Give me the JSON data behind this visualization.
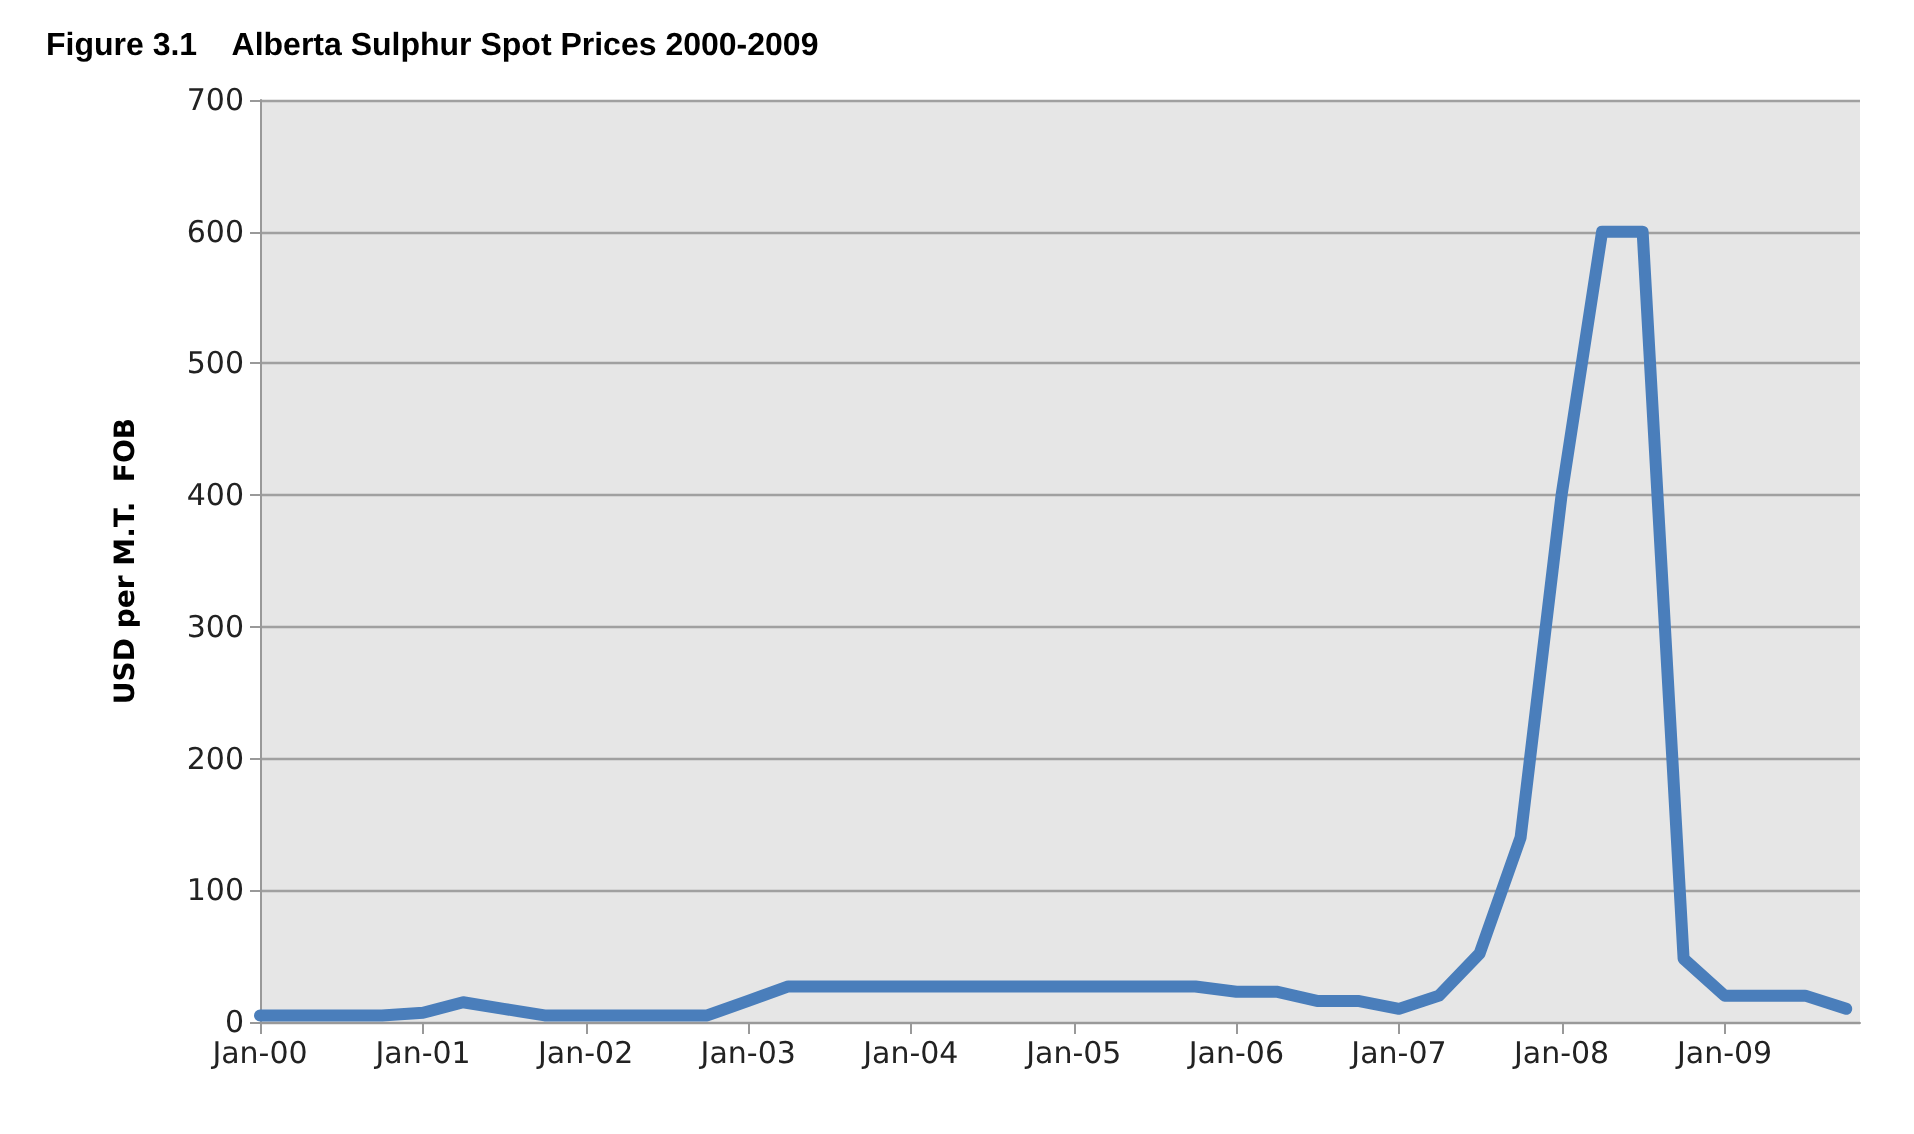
{
  "chart_data": {
    "type": "line",
    "title": "Figure 3.1    Alberta Sulphur Spot Prices 2000-2009",
    "ylabel": "USD per M.T.  FOB",
    "x": [
      "2000-01",
      "2000-04",
      "2000-07",
      "2000-10",
      "2001-01",
      "2001-04",
      "2001-07",
      "2001-10",
      "2002-01",
      "2002-04",
      "2002-07",
      "2002-10",
      "2003-01",
      "2003-04",
      "2003-07",
      "2003-10",
      "2004-01",
      "2004-04",
      "2004-07",
      "2004-10",
      "2005-01",
      "2005-04",
      "2005-07",
      "2005-10",
      "2006-01",
      "2006-04",
      "2006-07",
      "2006-10",
      "2007-01",
      "2007-04",
      "2007-07",
      "2007-10",
      "2008-01",
      "2008-04",
      "2008-07",
      "2008-10",
      "2009-01",
      "2009-04",
      "2009-07",
      "2009-10"
    ],
    "series": [
      {
        "color": "#4a7ebb",
        "values": [
          5,
          5,
          5,
          5,
          7,
          15,
          10,
          5,
          5,
          5,
          5,
          5,
          16,
          27,
          27,
          27,
          27,
          27,
          27,
          27,
          27,
          27,
          27,
          27,
          23,
          23,
          16,
          16,
          10,
          20,
          52,
          140,
          400,
          600,
          600,
          48,
          20,
          20,
          20,
          10
        ]
      }
    ],
    "xlim": [
      "2000-01",
      "2009-11"
    ],
    "xticks": [
      {
        "value": "2000-01",
        "label": "Jan-00"
      },
      {
        "value": "2001-01",
        "label": "Jan-01"
      },
      {
        "value": "2002-01",
        "label": "Jan-02"
      },
      {
        "value": "2003-01",
        "label": "Jan-03"
      },
      {
        "value": "2004-01",
        "label": "Jan-04"
      },
      {
        "value": "2005-01",
        "label": "Jan-05"
      },
      {
        "value": "2006-01",
        "label": "Jan-06"
      },
      {
        "value": "2007-01",
        "label": "Jan-07"
      },
      {
        "value": "2008-01",
        "label": "Jan-08"
      },
      {
        "value": "2009-01",
        "label": "Jan-09"
      }
    ],
    "ylim": [
      0,
      700
    ],
    "yticks": [
      0,
      100,
      200,
      300,
      400,
      500,
      600,
      700
    ],
    "grid": "y",
    "marker": "none",
    "line_style": "solid"
  }
}
